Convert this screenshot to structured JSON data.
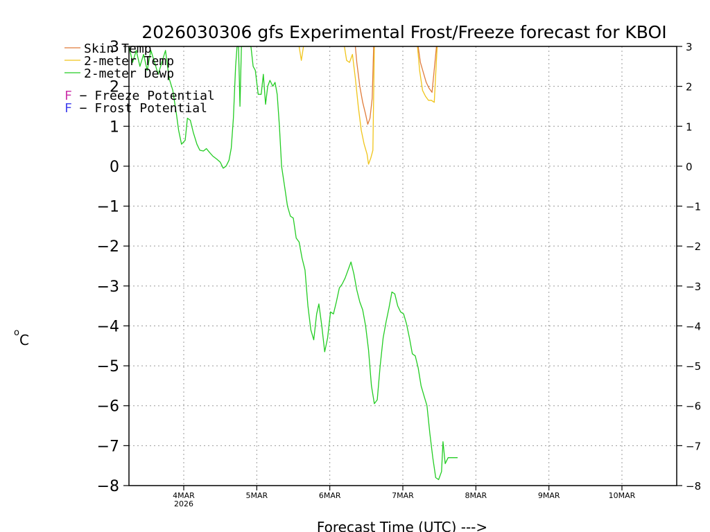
{
  "chart_data": {
    "type": "line",
    "title": "2026030306 gfs Experimental Frost/Freeze forecast for KBOI",
    "xlabel": "Forecast Time (UTC) --->",
    "ylabel_main": "o",
    "ylabel_unit": "C",
    "ylim": [
      -8,
      3
    ],
    "xlim": [
      0,
      7.5
    ],
    "yticks": [
      {
        "value": 3,
        "label": "3"
      },
      {
        "value": 2,
        "label": "2"
      },
      {
        "value": 1,
        "label": "1"
      },
      {
        "value": 0,
        "label": "0"
      },
      {
        "value": -1,
        "label": "−1"
      },
      {
        "value": -2,
        "label": "−2"
      },
      {
        "value": -3,
        "label": "−3"
      },
      {
        "value": -4,
        "label": "−4"
      },
      {
        "value": -5,
        "label": "−5"
      },
      {
        "value": -6,
        "label": "−6"
      },
      {
        "value": -7,
        "label": "−7"
      },
      {
        "value": -8,
        "label": "−8"
      }
    ],
    "xticks": [
      {
        "value": 0.75,
        "label": "4MAR",
        "sublabel": "2026"
      },
      {
        "value": 1.75,
        "label": "5MAR",
        "sublabel": ""
      },
      {
        "value": 2.75,
        "label": "6MAR",
        "sublabel": ""
      },
      {
        "value": 3.75,
        "label": "7MAR",
        "sublabel": ""
      },
      {
        "value": 4.75,
        "label": "8MAR",
        "sublabel": ""
      },
      {
        "value": 5.75,
        "label": "9MAR",
        "sublabel": ""
      },
      {
        "value": 6.75,
        "label": "10MAR",
        "sublabel": ""
      }
    ],
    "legend": {
      "placement": "top-left",
      "series_entries": [
        {
          "label": "Skin Temp",
          "color": "#e07b39"
        },
        {
          "label": "2-meter Temp",
          "color": "#f0c419"
        },
        {
          "label": "2-meter Dewp",
          "color": "#22cc22"
        }
      ],
      "symbol_entries": [
        {
          "symbol": "F",
          "text": " − Freeze Potential",
          "color": "#cc33aa"
        },
        {
          "symbol": "F",
          "text": " − Frost Potential",
          "color": "#4444ee"
        }
      ]
    },
    "series": [
      {
        "name": "2-meter Dewp",
        "color": "#22cc22",
        "points": [
          [
            0.0,
            3.0
          ],
          [
            0.05,
            2.6
          ],
          [
            0.1,
            2.9
          ],
          [
            0.15,
            2.5
          ],
          [
            0.2,
            2.8
          ],
          [
            0.25,
            2.4
          ],
          [
            0.3,
            2.9
          ],
          [
            0.35,
            2.6
          ],
          [
            0.4,
            2.3
          ],
          [
            0.45,
            2.6
          ],
          [
            0.5,
            2.9
          ],
          [
            0.55,
            2.2
          ],
          [
            0.6,
            1.9
          ],
          [
            0.65,
            1.3
          ],
          [
            0.68,
            0.9
          ],
          [
            0.72,
            0.55
          ],
          [
            0.77,
            0.65
          ],
          [
            0.8,
            1.2
          ],
          [
            0.84,
            1.15
          ],
          [
            0.88,
            0.85
          ],
          [
            0.93,
            0.55
          ],
          [
            0.97,
            0.4
          ],
          [
            1.02,
            0.38
          ],
          [
            1.06,
            0.44
          ],
          [
            1.1,
            0.35
          ],
          [
            1.15,
            0.25
          ],
          [
            1.2,
            0.18
          ],
          [
            1.25,
            0.1
          ],
          [
            1.29,
            -0.05
          ],
          [
            1.33,
            0.0
          ],
          [
            1.37,
            0.15
          ],
          [
            1.4,
            0.45
          ],
          [
            1.43,
            1.2
          ],
          [
            1.46,
            2.5
          ],
          [
            1.48,
            3.0
          ],
          [
            1.5,
            3.0
          ],
          [
            1.52,
            1.5
          ],
          [
            1.54,
            3.0
          ],
          [
            1.58,
            3.0
          ],
          [
            1.62,
            3.0
          ],
          [
            1.67,
            3.0
          ],
          [
            1.7,
            2.5
          ],
          [
            1.73,
            2.4
          ],
          [
            1.77,
            1.8
          ],
          [
            1.81,
            1.8
          ],
          [
            1.84,
            2.3
          ],
          [
            1.87,
            1.55
          ],
          [
            1.9,
            2.0
          ],
          [
            1.93,
            2.15
          ],
          [
            1.97,
            2.0
          ],
          [
            2.0,
            2.1
          ],
          [
            2.03,
            1.8
          ],
          [
            2.06,
            1.0
          ],
          [
            2.09,
            0.0
          ],
          [
            2.13,
            -0.5
          ],
          [
            2.17,
            -1.0
          ],
          [
            2.21,
            -1.25
          ],
          [
            2.25,
            -1.3
          ],
          [
            2.29,
            -1.8
          ],
          [
            2.33,
            -1.9
          ],
          [
            2.37,
            -2.3
          ],
          [
            2.41,
            -2.6
          ],
          [
            2.45,
            -3.5
          ],
          [
            2.49,
            -4.1
          ],
          [
            2.53,
            -4.35
          ],
          [
            2.57,
            -3.7
          ],
          [
            2.6,
            -3.45
          ],
          [
            2.64,
            -4.0
          ],
          [
            2.68,
            -4.65
          ],
          [
            2.72,
            -4.3
          ],
          [
            2.76,
            -3.65
          ],
          [
            2.8,
            -3.7
          ],
          [
            2.84,
            -3.4
          ],
          [
            2.88,
            -3.05
          ],
          [
            2.92,
            -2.95
          ],
          [
            2.96,
            -2.8
          ],
          [
            3.0,
            -2.6
          ],
          [
            3.04,
            -2.4
          ],
          [
            3.08,
            -2.7
          ],
          [
            3.12,
            -3.1
          ],
          [
            3.16,
            -3.4
          ],
          [
            3.2,
            -3.6
          ],
          [
            3.24,
            -4.0
          ],
          [
            3.28,
            -4.6
          ],
          [
            3.32,
            -5.5
          ],
          [
            3.36,
            -5.95
          ],
          [
            3.4,
            -5.85
          ],
          [
            3.44,
            -5.0
          ],
          [
            3.48,
            -4.3
          ],
          [
            3.52,
            -3.9
          ],
          [
            3.56,
            -3.55
          ],
          [
            3.6,
            -3.15
          ],
          [
            3.64,
            -3.2
          ],
          [
            3.68,
            -3.5
          ],
          [
            3.72,
            -3.65
          ],
          [
            3.76,
            -3.7
          ],
          [
            3.8,
            -3.95
          ],
          [
            3.84,
            -4.3
          ],
          [
            3.88,
            -4.7
          ],
          [
            3.92,
            -4.75
          ],
          [
            3.96,
            -5.05
          ],
          [
            4.0,
            -5.5
          ],
          [
            4.04,
            -5.75
          ],
          [
            4.08,
            -6.0
          ],
          [
            4.12,
            -6.7
          ],
          [
            4.16,
            -7.3
          ],
          [
            4.2,
            -7.8
          ],
          [
            4.24,
            -7.85
          ],
          [
            4.28,
            -7.65
          ],
          [
            4.3,
            -6.9
          ],
          [
            4.33,
            -7.45
          ],
          [
            4.37,
            -7.3
          ],
          [
            4.41,
            -7.3
          ],
          [
            4.45,
            -7.3
          ],
          [
            4.5,
            -7.3
          ]
        ]
      },
      {
        "name": "2-meter Temp",
        "color": "#f0c419",
        "segments": [
          [
            [
              2.33,
              3.0
            ],
            [
              2.36,
              2.65
            ],
            [
              2.39,
              3.0
            ]
          ],
          [
            [
              2.95,
              3.0
            ],
            [
              2.98,
              2.65
            ],
            [
              3.02,
              2.6
            ],
            [
              3.06,
              2.8
            ],
            [
              3.1,
              2.2
            ],
            [
              3.14,
              1.5
            ],
            [
              3.18,
              0.9
            ],
            [
              3.22,
              0.55
            ],
            [
              3.26,
              0.3
            ],
            [
              3.28,
              0.05
            ],
            [
              3.31,
              0.2
            ],
            [
              3.34,
              0.4
            ],
            [
              3.36,
              3.0
            ]
          ],
          [
            [
              3.95,
              3.0
            ],
            [
              3.98,
              2.4
            ],
            [
              4.02,
              1.9
            ],
            [
              4.06,
              1.75
            ],
            [
              4.1,
              1.65
            ],
            [
              4.14,
              1.65
            ],
            [
              4.18,
              1.6
            ],
            [
              4.2,
              2.3
            ],
            [
              4.22,
              3.0
            ]
          ]
        ]
      },
      {
        "name": "Skin Temp",
        "color": "#e07b39",
        "segments": [
          [
            [
              3.1,
              3.0
            ],
            [
              3.12,
              2.6
            ],
            [
              3.16,
              2.0
            ],
            [
              3.2,
              1.6
            ],
            [
              3.24,
              1.3
            ],
            [
              3.27,
              1.05
            ],
            [
              3.3,
              1.2
            ],
            [
              3.33,
              1.7
            ],
            [
              3.35,
              3.0
            ]
          ],
          [
            [
              3.96,
              3.0
            ],
            [
              3.99,
              2.6
            ],
            [
              4.03,
              2.35
            ],
            [
              4.07,
              2.1
            ],
            [
              4.11,
              1.95
            ],
            [
              4.15,
              1.85
            ],
            [
              4.19,
              2.6
            ],
            [
              4.21,
              3.0
            ]
          ]
        ]
      }
    ]
  }
}
